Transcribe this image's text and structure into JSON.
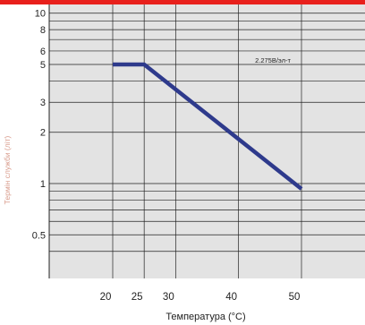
{
  "chart_data": {
    "type": "line",
    "title": "",
    "xlabel": "Температура (°C)",
    "ylabel": "Термін служби (літ)",
    "x_ticks": [
      "20",
      "25",
      "30",
      "40",
      "50"
    ],
    "y_ticks": [
      "0.5",
      "1",
      "2",
      "3",
      "5",
      "6",
      "8",
      "10"
    ],
    "y_scale": "log",
    "xlim": [
      15,
      60
    ],
    "ylim": [
      0.36,
      10
    ],
    "grid": true,
    "series": [
      {
        "name": "2.275В/эл-т",
        "x": [
          20,
          25,
          50
        ],
        "y": [
          5,
          5,
          0.93
        ]
      }
    ],
    "annotation": "2.275В/эл-т"
  },
  "colors": {
    "plot_background": "#e3e3e3",
    "line": "#2e3a8c",
    "top_bar": "#e8201c",
    "ylabel_color": "#d89a8a",
    "grid": "#222222"
  }
}
